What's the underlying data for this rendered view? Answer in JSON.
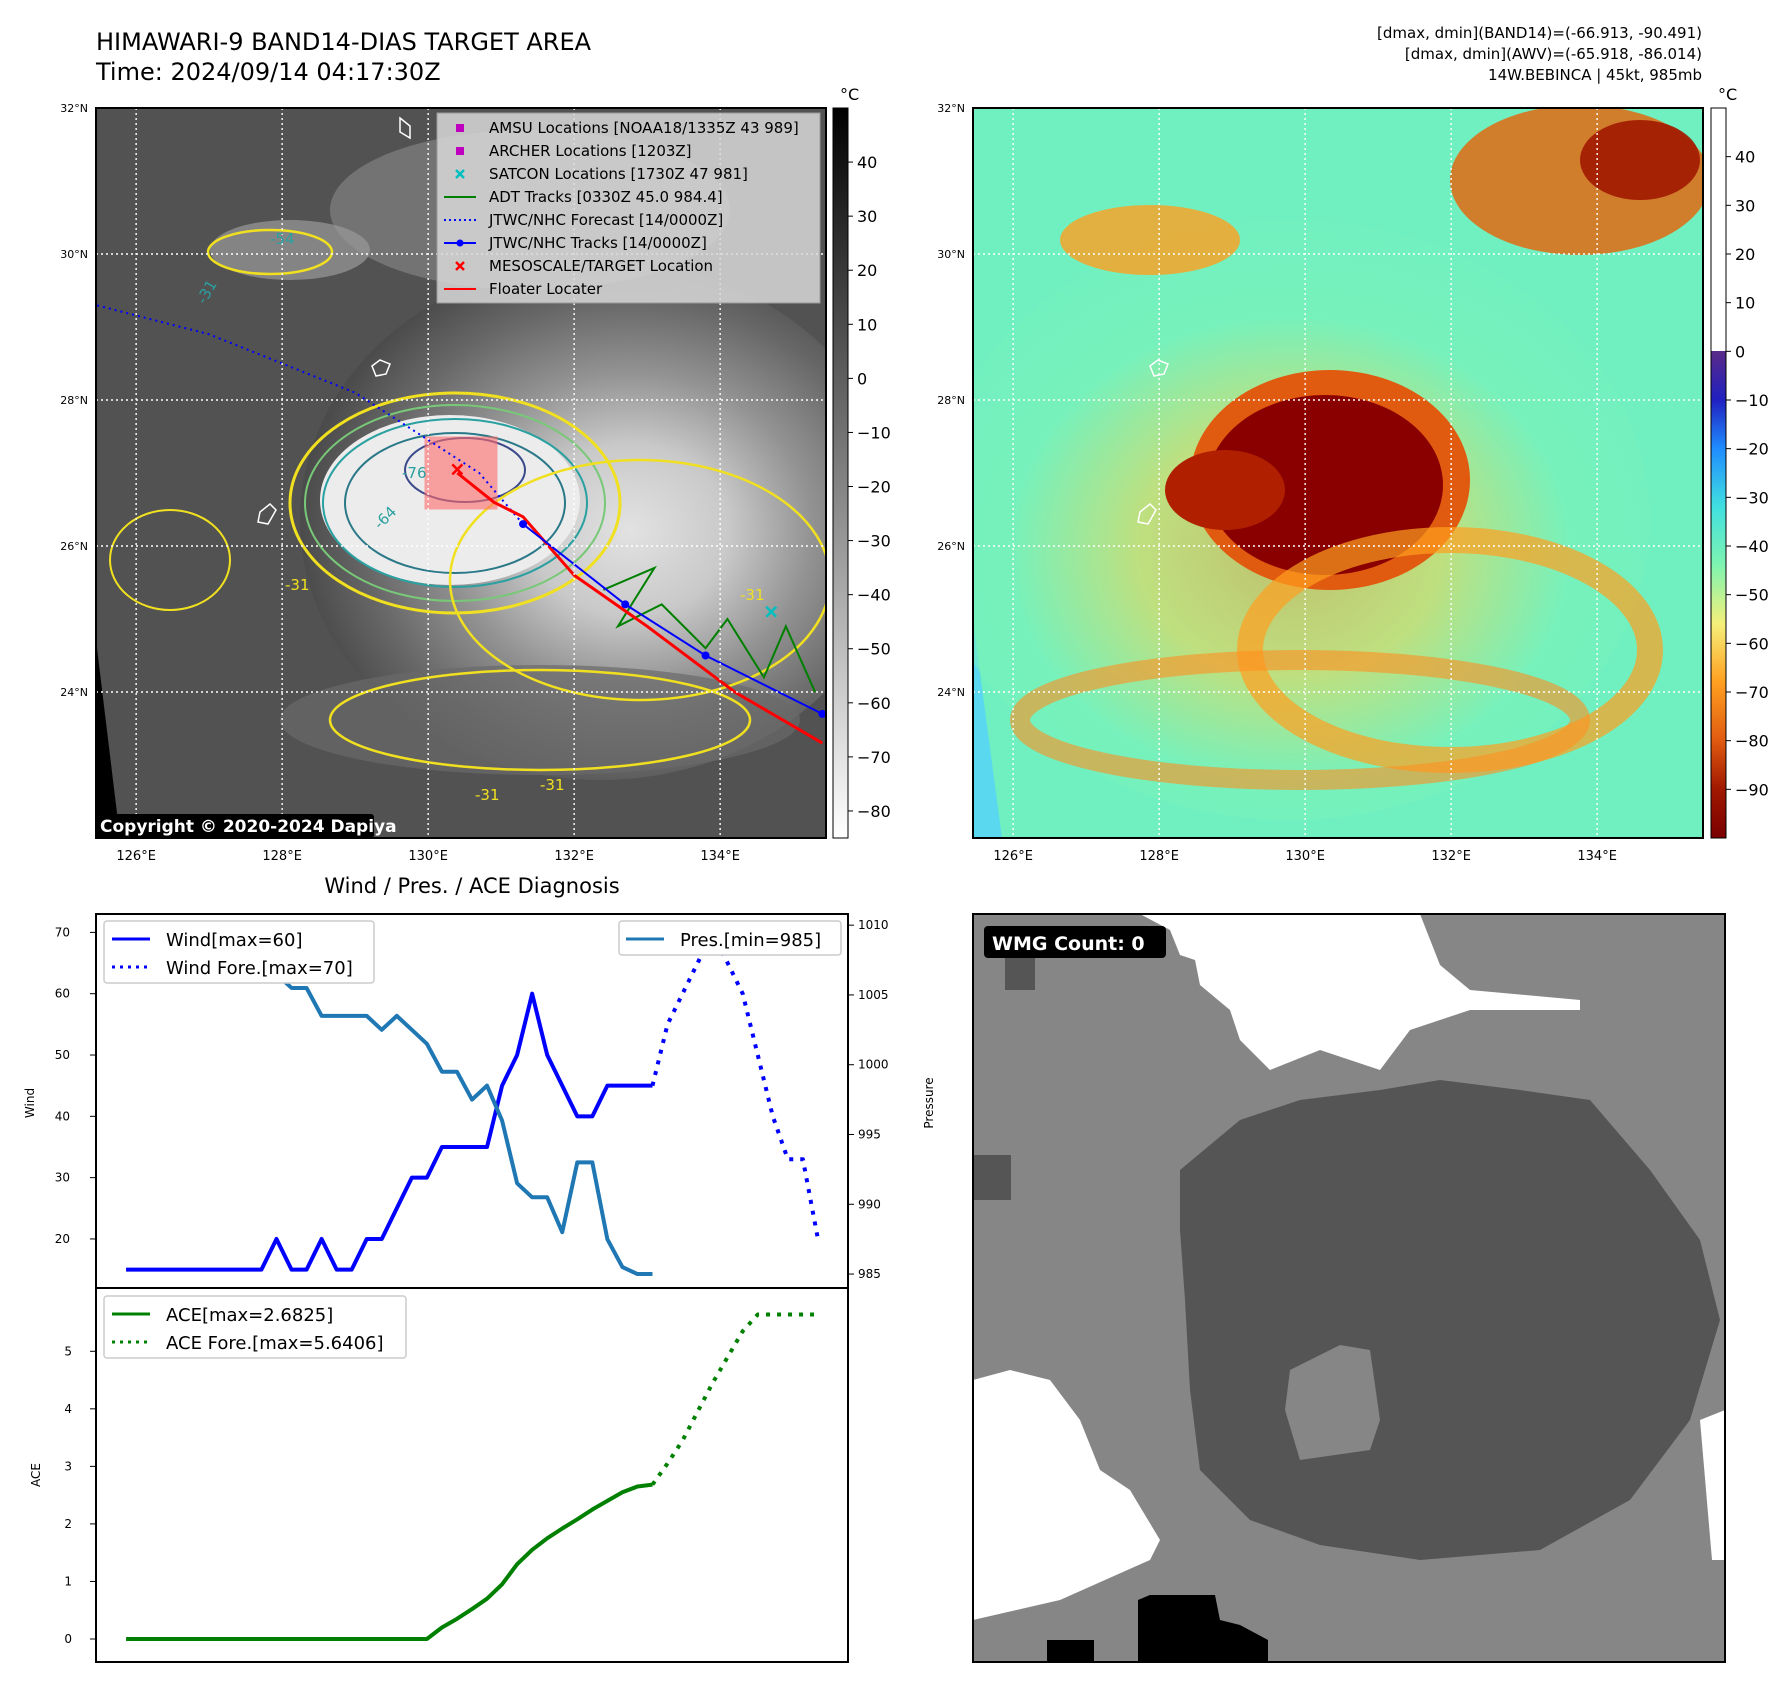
{
  "header": {
    "title": "HIMAWARI-9 BAND14-DIAS TARGET AREA",
    "time": "Time: 2024/09/14 04:17:30Z",
    "dmax_band14": "[dmax, dmin](BAND14)=(-66.913, -90.491)",
    "dmax_awv": "[dmax, dmin](AWV)=(-65.918, -86.014)",
    "storm": "14W.BEBINCA | 45kt, 985mb"
  },
  "map": {
    "lat_labels": [
      "32°N",
      "30°N",
      "28°N",
      "26°N",
      "24°N"
    ],
    "lon_labels": [
      "126°E",
      "128°E",
      "130°E",
      "132°E",
      "134°E"
    ],
    "lat_values": [
      32,
      30,
      28,
      26,
      24
    ],
    "lon_values": [
      126,
      128,
      130,
      132,
      134
    ],
    "lon_range": [
      125.45,
      135.45
    ],
    "lat_range": [
      22.0,
      32.0
    ],
    "colorbar_unit": "°C",
    "ir_colorbar_ticks": [
      "40",
      "30",
      "20",
      "10",
      "0",
      "−10",
      "−20",
      "−30",
      "−40",
      "−50",
      "−60",
      "−70",
      "−80"
    ],
    "ir_colorbar_values": [
      40,
      30,
      20,
      10,
      0,
      -10,
      -20,
      -30,
      -40,
      -50,
      -60,
      -70,
      -80
    ],
    "ir_colorbar_range": [
      -85,
      50
    ],
    "awv_colorbar_ticks": [
      "40",
      "30",
      "20",
      "10",
      "0",
      "−10",
      "−20",
      "−30",
      "−40",
      "−50",
      "−60",
      "−70",
      "−80",
      "−90"
    ],
    "awv_colorbar_values": [
      40,
      30,
      20,
      10,
      0,
      -10,
      -20,
      -30,
      -40,
      -50,
      -60,
      -70,
      -80,
      -90
    ],
    "awv_colorbar_range": [
      -100,
      50
    ],
    "contour_labels": [
      "-54",
      "-31",
      "-76",
      "-64",
      "-31",
      "-31",
      "-31",
      "-31"
    ],
    "copyright": "Copyright © 2020-2024 Dapiya",
    "legend": [
      {
        "label": "AMSU Locations [NOAA18/1335Z 43 989]",
        "marker": "square",
        "color": "#bf00bf"
      },
      {
        "label": "ARCHER Locations [1203Z]",
        "marker": "square",
        "color": "#bf00bf"
      },
      {
        "label": "SATCON Locations [1730Z 47 981]",
        "marker": "x",
        "color": "#00bfbf"
      },
      {
        "label": "ADT Tracks [0330Z 45.0 984.4]",
        "marker": "line",
        "color": "#008000"
      },
      {
        "label": "JTWC/NHC Forecast [14/0000Z]",
        "marker": "dotted",
        "color": "#0000ff"
      },
      {
        "label": "JTWC/NHC Tracks [14/0000Z]",
        "marker": "line-dot",
        "color": "#0000ff"
      },
      {
        "label": "MESOSCALE/TARGET Location",
        "marker": "x",
        "color": "#ff0000"
      },
      {
        "label": "Floater Locater",
        "marker": "line",
        "color": "#ff0000"
      }
    ],
    "tracks": {
      "jtwc_track": [
        [
          135.4,
          23.7
        ],
        [
          133.8,
          24.5
        ],
        [
          132.7,
          25.2
        ],
        [
          131.3,
          26.3
        ]
      ],
      "jtwc_forecast": [
        [
          131.3,
          26.3
        ],
        [
          130.7,
          27.0
        ],
        [
          129.0,
          28.1
        ],
        [
          127.0,
          28.9
        ],
        [
          125.45,
          29.3
        ]
      ],
      "floater": [
        [
          135.4,
          23.3
        ],
        [
          134.2,
          24.0
        ],
        [
          133.0,
          24.9
        ],
        [
          132.0,
          25.6
        ],
        [
          131.3,
          26.4
        ],
        [
          130.9,
          26.6
        ],
        [
          130.4,
          27.0
        ]
      ],
      "adt": [
        [
          135.3,
          24.0
        ],
        [
          134.9,
          24.9
        ],
        [
          134.6,
          24.2
        ],
        [
          134.1,
          25.0
        ],
        [
          133.8,
          24.6
        ],
        [
          133.2,
          25.2
        ],
        [
          132.6,
          24.9
        ],
        [
          133.1,
          25.7
        ],
        [
          132.4,
          25.4
        ]
      ],
      "target": [
        130.4,
        27.05
      ],
      "satcon": [
        134.7,
        25.1
      ],
      "floater_box": {
        "lon": [
          129.95,
          130.95
        ],
        "lat": [
          26.5,
          27.5
        ]
      }
    }
  },
  "wmg": {
    "label": "WMG Count: 0"
  },
  "chart_data": [
    {
      "type": "line",
      "title": "Wind / Pres. / ACE Diagnosis",
      "xlabel": "",
      "ylabel": "Wind",
      "ylabel2": "Pressure",
      "ylim": [
        12,
        73
      ],
      "ylim2": [
        984,
        1010.8
      ],
      "yticks": [
        20,
        30,
        40,
        50,
        60,
        70
      ],
      "yticks2": [
        985,
        990,
        995,
        1000,
        1005,
        1010
      ],
      "xlim": [
        -2,
        48
      ],
      "series": [
        {
          "name": "Wind[max=60]",
          "axis": "left",
          "style": "solid",
          "color": "#0000ff",
          "x": [
            0,
            9,
            10,
            11,
            12,
            13,
            14,
            15,
            16,
            17,
            18,
            19,
            20,
            21,
            22,
            23,
            24,
            25,
            26,
            27,
            28,
            29,
            30,
            31,
            32,
            33,
            34,
            35
          ],
          "values": [
            15,
            15,
            20,
            15,
            15,
            20,
            15,
            15,
            20,
            20,
            25,
            30,
            30,
            35,
            35,
            35,
            35,
            45,
            50,
            60,
            50,
            45,
            40,
            40,
            45,
            45,
            45,
            45
          ]
        },
        {
          "name": "Wind Fore.[max=70]",
          "axis": "left",
          "style": "dotted",
          "color": "#0000ff",
          "x": [
            35,
            36,
            37,
            38,
            39,
            40,
            41,
            42,
            43,
            44,
            45,
            46
          ],
          "values": [
            45,
            55,
            60,
            65,
            70,
            65,
            60,
            50,
            40,
            33,
            33,
            20
          ]
        },
        {
          "name": "Pres.[min=985]",
          "axis": "right",
          "style": "solid",
          "color": "#1f77b4",
          "x": [
            0,
            1,
            2,
            3,
            4,
            5,
            6,
            7,
            8,
            9,
            10,
            11,
            12,
            13,
            14,
            15,
            16,
            17,
            18,
            19,
            20,
            21,
            22,
            23,
            24,
            25,
            26,
            27,
            28,
            29,
            30,
            31,
            32,
            33,
            34,
            35
          ],
          "values": [
            1010,
            1008.5,
            1008.5,
            1008.5,
            1008.5,
            1009.3,
            1009.3,
            1008,
            1008,
            1007.5,
            1006.5,
            1005.5,
            1005.5,
            1003.5,
            1003.5,
            1003.5,
            1003.5,
            1002.5,
            1003.5,
            1002.5,
            1001.5,
            999.5,
            999.5,
            997.5,
            998.5,
            996,
            991.5,
            990.5,
            990.5,
            988,
            993,
            993,
            987.5,
            985.5,
            985,
            985
          ]
        }
      ]
    },
    {
      "type": "line",
      "title": "",
      "xlabel": "",
      "ylabel": "ACE",
      "ylim": [
        -0.4,
        6.1
      ],
      "yticks": [
        0,
        1,
        2,
        3,
        4,
        5
      ],
      "xlim": [
        -2,
        48
      ],
      "series": [
        {
          "name": "ACE[max=2.6825]",
          "style": "solid",
          "color": "#008000",
          "x": [
            0,
            20,
            21,
            22,
            23,
            24,
            25,
            26,
            27,
            28,
            29,
            30,
            31,
            32,
            33,
            34,
            35
          ],
          "values": [
            0,
            0,
            0.2,
            0.35,
            0.52,
            0.7,
            0.95,
            1.3,
            1.55,
            1.75,
            1.92,
            2.08,
            2.25,
            2.4,
            2.55,
            2.65,
            2.6825
          ]
        },
        {
          "name": "ACE Fore.[max=5.6406]",
          "style": "dotted",
          "color": "#008000",
          "x": [
            35,
            36,
            37,
            38,
            39,
            40,
            41,
            42,
            43,
            44,
            45,
            46
          ],
          "values": [
            2.6825,
            3.05,
            3.45,
            3.95,
            4.45,
            4.9,
            5.35,
            5.64,
            5.64,
            5.64,
            5.64,
            5.64
          ]
        }
      ]
    }
  ]
}
